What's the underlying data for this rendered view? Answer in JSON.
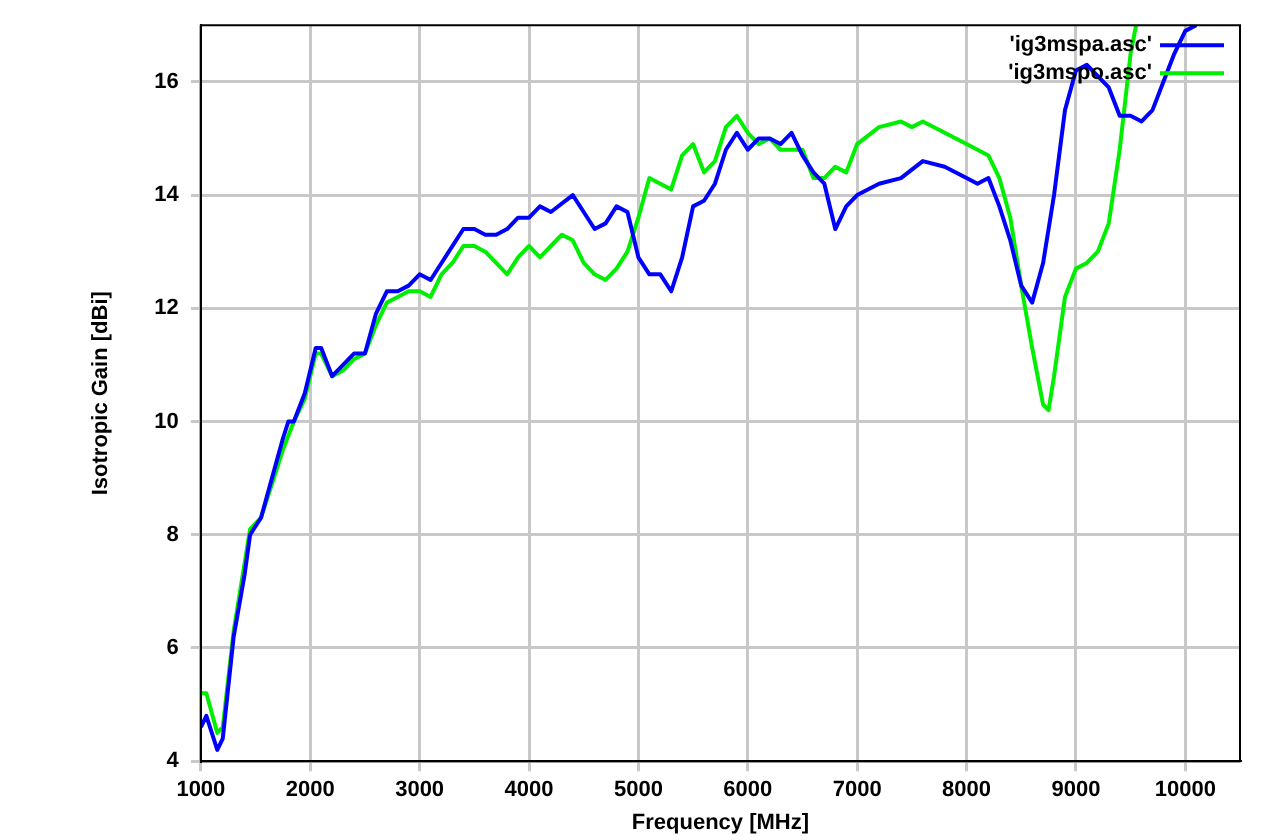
{
  "chart_data": {
    "type": "line",
    "xlabel": "Frequency [MHz]",
    "ylabel": "Isotropic Gain [dBi]",
    "xlim": [
      1000,
      10500
    ],
    "xticks": [
      1000,
      2000,
      3000,
      4000,
      5000,
      6000,
      7000,
      8000,
      9000,
      10000
    ],
    "ylim": [
      4,
      17
    ],
    "yticks": [
      4,
      6,
      8,
      10,
      12,
      14,
      16
    ],
    "grid": true,
    "legend": "top right",
    "marker": "none",
    "line_style": "solid",
    "series": [
      {
        "name": "'ig3mspa.asc'",
        "color": "#0000ff",
        "x": [
          1000,
          1050,
          1150,
          1200,
          1300,
          1400,
          1450,
          1550,
          1650,
          1750,
          1800,
          1850,
          1950,
          2050,
          2100,
          2200,
          2300,
          2400,
          2500,
          2600,
          2700,
          2800,
          2900,
          3000,
          3100,
          3200,
          3400,
          3500,
          3600,
          3700,
          3800,
          3900,
          4000,
          4100,
          4200,
          4400,
          4500,
          4600,
          4700,
          4800,
          4900,
          5000,
          5100,
          5200,
          5300,
          5400,
          5500,
          5600,
          5700,
          5800,
          5900,
          6000,
          6100,
          6200,
          6300,
          6400,
          6500,
          6600,
          6700,
          6800,
          6900,
          7000,
          7200,
          7400,
          7600,
          7800,
          8000,
          8100,
          8200,
          8300,
          8400,
          8500,
          8600,
          8700,
          8800,
          8900,
          9000,
          9100,
          9300,
          9400,
          9500,
          9600,
          9700,
          9800,
          9900,
          10000,
          10100
        ],
        "values": [
          4.6,
          4.8,
          4.2,
          4.4,
          6.2,
          7.3,
          8.0,
          8.3,
          9.0,
          9.7,
          10.0,
          10.0,
          10.5,
          11.3,
          11.3,
          10.8,
          11.0,
          11.2,
          11.2,
          11.9,
          12.3,
          12.3,
          12.4,
          12.6,
          12.5,
          12.8,
          13.4,
          13.4,
          13.3,
          13.3,
          13.4,
          13.6,
          13.6,
          13.8,
          13.7,
          14.0,
          13.7,
          13.4,
          13.5,
          13.8,
          13.7,
          12.9,
          12.6,
          12.6,
          12.3,
          12.9,
          13.8,
          13.9,
          14.2,
          14.8,
          15.1,
          14.8,
          15.0,
          15.0,
          14.9,
          15.1,
          14.7,
          14.4,
          14.2,
          13.4,
          13.8,
          14.0,
          14.2,
          14.3,
          14.6,
          14.5,
          14.3,
          14.2,
          14.3,
          13.8,
          13.2,
          12.4,
          12.1,
          12.8,
          14.0,
          15.5,
          16.2,
          16.3,
          15.9,
          15.4,
          15.4,
          15.3,
          15.5,
          16.0,
          16.5,
          16.9,
          17.0
        ]
      },
      {
        "name": "'ig3mspo.asc'",
        "color": "#00ee00",
        "x": [
          1000,
          1050,
          1150,
          1200,
          1300,
          1400,
          1450,
          1550,
          1650,
          1750,
          1850,
          1950,
          2050,
          2100,
          2200,
          2300,
          2400,
          2500,
          2600,
          2700,
          2800,
          2900,
          3000,
          3100,
          3200,
          3300,
          3400,
          3500,
          3600,
          3700,
          3800,
          3900,
          4000,
          4100,
          4200,
          4300,
          4400,
          4500,
          4600,
          4700,
          4800,
          4900,
          5000,
          5100,
          5200,
          5300,
          5400,
          5500,
          5600,
          5700,
          5800,
          5900,
          6000,
          6100,
          6200,
          6300,
          6500,
          6600,
          6700,
          6800,
          6900,
          7000,
          7200,
          7400,
          7500,
          7600,
          7800,
          8000,
          8100,
          8200,
          8300,
          8400,
          8500,
          8600,
          8700,
          8750,
          8800,
          8900,
          9000,
          9100,
          9200,
          9300,
          9400,
          9500,
          9550
        ],
        "values": [
          5.2,
          5.2,
          4.5,
          4.6,
          6.3,
          7.5,
          8.1,
          8.3,
          8.9,
          9.5,
          10.0,
          10.4,
          11.2,
          11.2,
          10.8,
          10.9,
          11.1,
          11.2,
          11.7,
          12.1,
          12.2,
          12.3,
          12.3,
          12.2,
          12.6,
          12.8,
          13.1,
          13.1,
          13.0,
          12.8,
          12.6,
          12.9,
          13.1,
          12.9,
          13.1,
          13.3,
          13.2,
          12.8,
          12.6,
          12.5,
          12.7,
          13.0,
          13.6,
          14.3,
          14.2,
          14.1,
          14.7,
          14.9,
          14.4,
          14.6,
          15.2,
          15.4,
          15.1,
          14.9,
          15.0,
          14.8,
          14.8,
          14.3,
          14.3,
          14.5,
          14.4,
          14.9,
          15.2,
          15.3,
          15.2,
          15.3,
          15.1,
          14.9,
          14.8,
          14.7,
          14.3,
          13.6,
          12.4,
          11.3,
          10.3,
          10.2,
          10.8,
          12.2,
          12.7,
          12.8,
          13.0,
          13.5,
          14.8,
          16.5,
          17.0
        ]
      }
    ]
  }
}
